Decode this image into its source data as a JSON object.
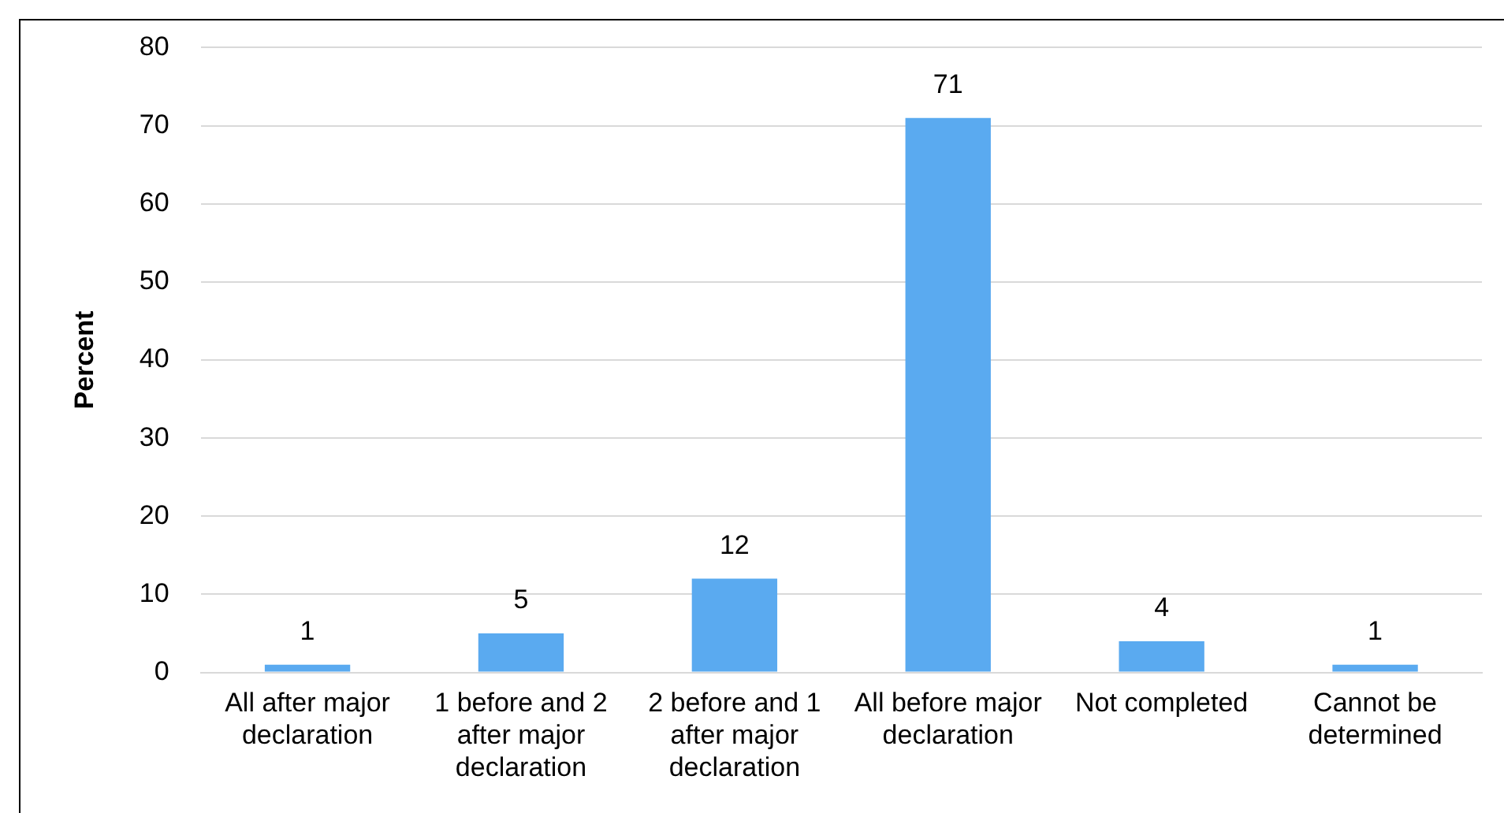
{
  "chart_data": {
    "type": "bar",
    "ylabel": "Percent",
    "categories": [
      "All after major declaration",
      "1 before and 2 after major declaration",
      "2 before and 1 after major declaration",
      "All before major declaration",
      "Not completed",
      "Cannot be determined"
    ],
    "values": [
      1,
      5,
      12,
      71,
      4,
      1
    ],
    "color": "#5aaaf0",
    "ylim": [
      0,
      80
    ],
    "yticks": [
      0,
      10,
      20,
      30,
      40,
      50,
      60,
      70,
      80
    ],
    "grid": "y",
    "data_labels": true
  }
}
